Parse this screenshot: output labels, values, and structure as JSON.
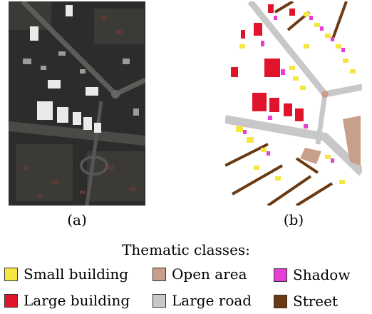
{
  "captions": {
    "a": "(a)",
    "b": "(b)"
  },
  "legend": {
    "title": "Thematic classes:",
    "items": [
      {
        "label": "Small building",
        "color": "#f5e642"
      },
      {
        "label": "Open area",
        "color": "#c8a089"
      },
      {
        "label": "Shadow",
        "color": "#e83ed6"
      },
      {
        "label": "Large building",
        "color": "#e0142a"
      },
      {
        "label": "Large road",
        "color": "#c8c8c8"
      },
      {
        "label": "Street",
        "color": "#6b3a12"
      }
    ]
  }
}
